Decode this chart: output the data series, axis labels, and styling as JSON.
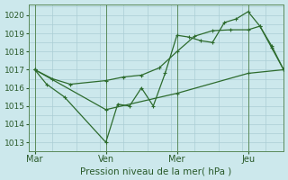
{
  "xlabel": "Pression niveau de la mer( hPa )",
  "bg_color": "#cce8ec",
  "grid_color": "#aacdd4",
  "line_color": "#2d6b2d",
  "yticks": [
    1013,
    1014,
    1015,
    1016,
    1017,
    1018,
    1019,
    1020
  ],
  "ylim": [
    1012.5,
    1020.6
  ],
  "xtick_labels": [
    "Mar",
    "Ven",
    "Mer",
    "Jeu"
  ],
  "xtick_positions": [
    0,
    24,
    48,
    72
  ],
  "xlim": [
    -2,
    84
  ],
  "vline_positions": [
    0,
    24,
    48,
    72
  ],
  "series1_zigzag": {
    "x": [
      0,
      4,
      10,
      24,
      28,
      32,
      36,
      40,
      44,
      48,
      52,
      56,
      60,
      64,
      68,
      72,
      76,
      80,
      84
    ],
    "y": [
      1017.0,
      1016.2,
      1015.5,
      1013.0,
      1015.1,
      1015.0,
      1016.0,
      1015.0,
      1016.8,
      1018.9,
      1018.8,
      1018.6,
      1018.5,
      1019.6,
      1019.8,
      1020.2,
      1019.4,
      1018.2,
      1017.0
    ]
  },
  "series2_smooth": {
    "x": [
      0,
      6,
      12,
      24,
      30,
      36,
      42,
      48,
      54,
      60,
      66,
      72,
      76,
      80,
      84
    ],
    "y": [
      1017.0,
      1016.5,
      1016.2,
      1016.4,
      1016.6,
      1016.7,
      1017.1,
      1018.0,
      1018.85,
      1019.15,
      1019.2,
      1019.2,
      1019.4,
      1018.3,
      1017.0
    ]
  },
  "series3_diagonal": {
    "x": [
      0,
      24,
      48,
      72,
      84
    ],
    "y": [
      1017.0,
      1014.8,
      1015.7,
      1016.8,
      1017.0
    ]
  }
}
